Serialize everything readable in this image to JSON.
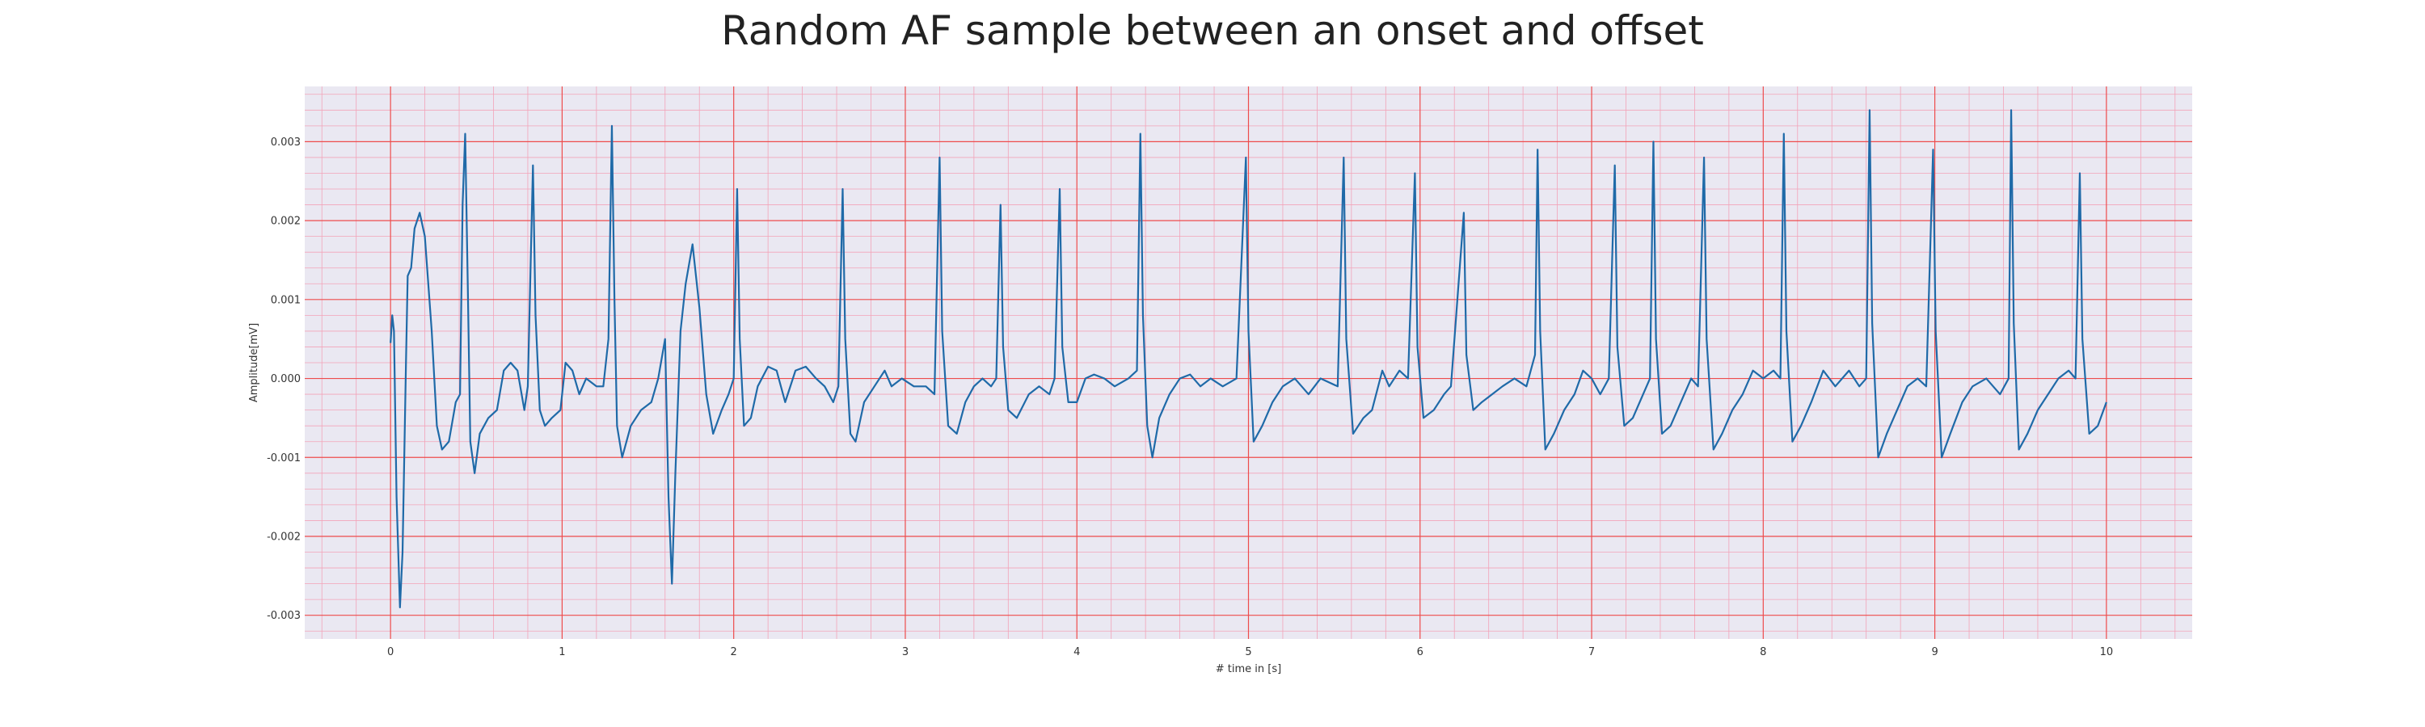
{
  "chart_data": {
    "type": "line",
    "title": "Random AF sample between an onset and offset",
    "xlabel": "# time in [s]",
    "ylabel": "Amplitude[mV]",
    "xlim": [
      -0.5,
      10.5
    ],
    "ylim": [
      -0.0033,
      0.0037
    ],
    "xticks": [
      0,
      1,
      2,
      3,
      4,
      5,
      6,
      7,
      8,
      9,
      10
    ],
    "xtick_labels": [
      "0",
      "1",
      "2",
      "3",
      "4",
      "5",
      "6",
      "7",
      "8",
      "9",
      "10"
    ],
    "yticks": [
      -0.003,
      -0.002,
      -0.001,
      0.0,
      0.001,
      0.002,
      0.003
    ],
    "ytick_labels": [
      "-0.003",
      "-0.002",
      "-0.001",
      "0.000",
      "0.001",
      "0.002",
      "0.003"
    ],
    "grid": true,
    "colors": {
      "background": "#eae8f2",
      "major_grid": "#ee4c4c",
      "minor_grid": "#f3a3b8",
      "line": "#1f6aa8"
    },
    "series": [
      {
        "points": [
          [
            0.0,
            0.00045
          ],
          [
            0.01,
            0.0008
          ],
          [
            0.02,
            0.0006
          ],
          [
            0.035,
            -0.0015
          ],
          [
            0.055,
            -0.0029
          ],
          [
            0.07,
            -0.0022
          ],
          [
            0.09,
            0.0002
          ],
          [
            0.1,
            0.0013
          ],
          [
            0.12,
            0.0014
          ],
          [
            0.14,
            0.0019
          ],
          [
            0.17,
            0.0021
          ],
          [
            0.2,
            0.0018
          ],
          [
            0.24,
            0.0006
          ],
          [
            0.27,
            -0.0006
          ],
          [
            0.3,
            -0.0009
          ],
          [
            0.34,
            -0.0008
          ],
          [
            0.38,
            -0.0003
          ],
          [
            0.405,
            -0.0002
          ],
          [
            0.42,
            0.0022
          ],
          [
            0.435,
            0.0031
          ],
          [
            0.45,
            0.0012
          ],
          [
            0.465,
            -0.0008
          ],
          [
            0.49,
            -0.0012
          ],
          [
            0.52,
            -0.0007
          ],
          [
            0.57,
            -0.0005
          ],
          [
            0.62,
            -0.0004
          ],
          [
            0.66,
            0.0001
          ],
          [
            0.7,
            0.0002
          ],
          [
            0.74,
            0.0001
          ],
          [
            0.78,
            -0.0004
          ],
          [
            0.8,
            -0.0001
          ],
          [
            0.83,
            0.0027
          ],
          [
            0.845,
            0.0008
          ],
          [
            0.87,
            -0.0004
          ],
          [
            0.9,
            -0.0006
          ],
          [
            0.94,
            -0.0005
          ],
          [
            0.99,
            -0.0004
          ],
          [
            1.02,
            0.0002
          ],
          [
            1.06,
            0.0001
          ],
          [
            1.1,
            -0.0002
          ],
          [
            1.14,
            0.0
          ],
          [
            1.2,
            -0.0001
          ],
          [
            1.24,
            -0.0001
          ],
          [
            1.27,
            0.0005
          ],
          [
            1.29,
            0.0032
          ],
          [
            1.305,
            0.001
          ],
          [
            1.32,
            -0.0006
          ],
          [
            1.35,
            -0.001
          ],
          [
            1.4,
            -0.0006
          ],
          [
            1.46,
            -0.0004
          ],
          [
            1.52,
            -0.0003
          ],
          [
            1.56,
            0.0
          ],
          [
            1.6,
            0.0005
          ],
          [
            1.62,
            -0.0015
          ],
          [
            1.64,
            -0.0026
          ],
          [
            1.66,
            -0.0012
          ],
          [
            1.69,
            0.0006
          ],
          [
            1.72,
            0.0012
          ],
          [
            1.76,
            0.0017
          ],
          [
            1.8,
            0.0009
          ],
          [
            1.84,
            -0.0002
          ],
          [
            1.88,
            -0.0007
          ],
          [
            1.93,
            -0.0004
          ],
          [
            1.97,
            -0.0002
          ],
          [
            2.0,
            0.0
          ],
          [
            2.02,
            0.0024
          ],
          [
            2.035,
            0.0005
          ],
          [
            2.06,
            -0.0006
          ],
          [
            2.1,
            -0.0005
          ],
          [
            2.14,
            -0.0001
          ],
          [
            2.2,
            0.00015
          ],
          [
            2.25,
            0.0001
          ],
          [
            2.3,
            -0.0003
          ],
          [
            2.36,
            0.0001
          ],
          [
            2.42,
            0.00015
          ],
          [
            2.48,
            0.0
          ],
          [
            2.53,
            -0.0001
          ],
          [
            2.58,
            -0.0003
          ],
          [
            2.61,
            -0.0001
          ],
          [
            2.635,
            0.0024
          ],
          [
            2.65,
            0.0005
          ],
          [
            2.68,
            -0.0007
          ],
          [
            2.71,
            -0.0008
          ],
          [
            2.76,
            -0.0003
          ],
          [
            2.82,
            -0.0001
          ],
          [
            2.88,
            0.0001
          ],
          [
            2.92,
            -0.0001
          ],
          [
            2.98,
            0.0
          ],
          [
            3.05,
            -0.0001
          ],
          [
            3.12,
            -0.0001
          ],
          [
            3.17,
            -0.0002
          ],
          [
            3.2,
            0.0028
          ],
          [
            3.215,
            0.0006
          ],
          [
            3.25,
            -0.0006
          ],
          [
            3.3,
            -0.0007
          ],
          [
            3.35,
            -0.0003
          ],
          [
            3.4,
            -0.0001
          ],
          [
            3.45,
            0.0
          ],
          [
            3.5,
            -0.0001
          ],
          [
            3.53,
            0.0
          ],
          [
            3.555,
            0.0022
          ],
          [
            3.57,
            0.0004
          ],
          [
            3.6,
            -0.0004
          ],
          [
            3.65,
            -0.0005
          ],
          [
            3.72,
            -0.0002
          ],
          [
            3.78,
            -0.0001
          ],
          [
            3.84,
            -0.0002
          ],
          [
            3.87,
            0.0
          ],
          [
            3.9,
            0.0024
          ],
          [
            3.915,
            0.0004
          ],
          [
            3.95,
            -0.0003
          ],
          [
            4.0,
            -0.0003
          ],
          [
            4.05,
            0.0
          ],
          [
            4.1,
            5e-05
          ],
          [
            4.16,
            0.0
          ],
          [
            4.22,
            -0.0001
          ],
          [
            4.3,
            0.0
          ],
          [
            4.35,
            0.0001
          ],
          [
            4.37,
            0.0031
          ],
          [
            4.385,
            0.0008
          ],
          [
            4.41,
            -0.0006
          ],
          [
            4.44,
            -0.001
          ],
          [
            4.48,
            -0.0005
          ],
          [
            4.54,
            -0.0002
          ],
          [
            4.6,
            0.0
          ],
          [
            4.66,
            5e-05
          ],
          [
            4.72,
            -0.0001
          ],
          [
            4.78,
            0.0
          ],
          [
            4.85,
            -0.0001
          ],
          [
            4.93,
            0.0
          ],
          [
            4.985,
            0.0028
          ],
          [
            5.0,
            0.0006
          ],
          [
            5.03,
            -0.0008
          ],
          [
            5.08,
            -0.0006
          ],
          [
            5.14,
            -0.0003
          ],
          [
            5.2,
            -0.0001
          ],
          [
            5.27,
            0.0
          ],
          [
            5.35,
            -0.0002
          ],
          [
            5.42,
            0.0
          ],
          [
            5.52,
            -0.0001
          ],
          [
            5.555,
            0.0028
          ],
          [
            5.57,
            0.0005
          ],
          [
            5.61,
            -0.0007
          ],
          [
            5.67,
            -0.0005
          ],
          [
            5.72,
            -0.0004
          ],
          [
            5.78,
            0.0001
          ],
          [
            5.82,
            -0.0001
          ],
          [
            5.88,
            0.0001
          ],
          [
            5.93,
            0.0
          ],
          [
            5.97,
            0.0026
          ],
          [
            5.985,
            0.0004
          ],
          [
            6.02,
            -0.0005
          ],
          [
            6.08,
            -0.0004
          ],
          [
            6.14,
            -0.0002
          ],
          [
            6.18,
            -0.0001
          ],
          [
            6.255,
            0.0021
          ],
          [
            6.27,
            0.0003
          ],
          [
            6.31,
            -0.0004
          ],
          [
            6.36,
            -0.0003
          ],
          [
            6.42,
            -0.0002
          ],
          [
            6.48,
            -0.0001
          ],
          [
            6.55,
            0.0
          ],
          [
            6.62,
            -0.0001
          ],
          [
            6.67,
            0.0003
          ],
          [
            6.685,
            0.0029
          ],
          [
            6.7,
            0.0006
          ],
          [
            6.73,
            -0.0009
          ],
          [
            6.78,
            -0.0007
          ],
          [
            6.84,
            -0.0004
          ],
          [
            6.9,
            -0.0002
          ],
          [
            6.95,
            0.0001
          ],
          [
            7.0,
            0.0
          ],
          [
            7.05,
            -0.0002
          ],
          [
            7.1,
            0.0
          ],
          [
            7.135,
            0.0027
          ],
          [
            7.15,
            0.0004
          ],
          [
            7.19,
            -0.0006
          ],
          [
            7.24,
            -0.0005
          ],
          [
            7.3,
            -0.0002
          ],
          [
            7.34,
            0.0
          ],
          [
            7.36,
            0.003
          ],
          [
            7.375,
            0.0005
          ],
          [
            7.41,
            -0.0007
          ],
          [
            7.46,
            -0.0006
          ],
          [
            7.52,
            -0.0003
          ],
          [
            7.58,
            0.0
          ],
          [
            7.62,
            -0.0001
          ],
          [
            7.655,
            0.0028
          ],
          [
            7.67,
            0.0005
          ],
          [
            7.71,
            -0.0009
          ],
          [
            7.76,
            -0.0007
          ],
          [
            7.82,
            -0.0004
          ],
          [
            7.88,
            -0.0002
          ],
          [
            7.94,
            0.0001
          ],
          [
            8.0,
            0.0
          ],
          [
            8.06,
            0.0001
          ],
          [
            8.1,
            0.0
          ],
          [
            8.12,
            0.0031
          ],
          [
            8.135,
            0.0006
          ],
          [
            8.17,
            -0.0008
          ],
          [
            8.22,
            -0.0006
          ],
          [
            8.28,
            -0.0003
          ],
          [
            8.35,
            0.0001
          ],
          [
            8.42,
            -0.0001
          ],
          [
            8.5,
            0.0001
          ],
          [
            8.56,
            -0.0001
          ],
          [
            8.6,
            0.0
          ],
          [
            8.62,
            0.0034
          ],
          [
            8.635,
            0.0007
          ],
          [
            8.67,
            -0.001
          ],
          [
            8.72,
            -0.0007
          ],
          [
            8.78,
            -0.0004
          ],
          [
            8.84,
            -0.0001
          ],
          [
            8.9,
            0.0
          ],
          [
            8.95,
            -0.0001
          ],
          [
            8.99,
            0.0029
          ],
          [
            9.005,
            0.0006
          ],
          [
            9.04,
            -0.001
          ],
          [
            9.09,
            -0.0007
          ],
          [
            9.16,
            -0.0003
          ],
          [
            9.22,
            -0.0001
          ],
          [
            9.3,
            0.0
          ],
          [
            9.38,
            -0.0002
          ],
          [
            9.43,
            0.0
          ],
          [
            9.445,
            0.0034
          ],
          [
            9.46,
            0.0007
          ],
          [
            9.49,
            -0.0009
          ],
          [
            9.54,
            -0.0007
          ],
          [
            9.6,
            -0.0004
          ],
          [
            9.66,
            -0.0002
          ],
          [
            9.72,
            0.0
          ],
          [
            9.78,
            0.0001
          ],
          [
            9.82,
            0.0
          ],
          [
            9.845,
            0.0026
          ],
          [
            9.86,
            0.0005
          ],
          [
            9.9,
            -0.0007
          ],
          [
            9.95,
            -0.0006
          ],
          [
            10.0,
            -0.0003
          ]
        ]
      }
    ]
  }
}
